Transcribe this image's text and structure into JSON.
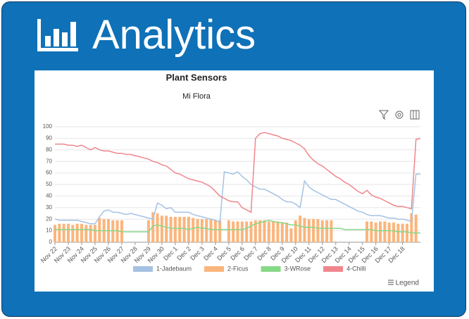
{
  "header": {
    "title": "Analytics"
  },
  "legend_button": "Legend",
  "chart_data": {
    "type": "line",
    "title": "Plant Sensors",
    "subtitle": "Mi Flora",
    "categories": [
      "Nov 22",
      null,
      null,
      "Nov 23",
      null,
      null,
      "Nov 24",
      null,
      null,
      "Nov 25",
      null,
      null,
      "Nov 26",
      null,
      null,
      "Nov 27",
      null,
      null,
      "Nov 28",
      null,
      null,
      "Nov 29",
      null,
      null,
      "Nov 30",
      null,
      null,
      "Dec 1",
      null,
      null,
      "Dec 2",
      null,
      null,
      "Dec 3",
      null,
      null,
      "Dec 4",
      null,
      null,
      "Dec 5",
      null,
      null,
      "Dec 6",
      null,
      null,
      "Dec 7",
      null,
      null,
      "Dec 8",
      null,
      null,
      "Dec 9",
      null,
      null,
      "Dec 10",
      null,
      null,
      "Dec 11",
      null,
      null,
      "Dec 12",
      null,
      null,
      "Dec 13",
      null,
      null,
      "Dec 14",
      null,
      null,
      "Dec 15",
      null,
      null,
      "Dec 16",
      null,
      null,
      "Dec 17",
      null,
      null,
      "Dec 18",
      null,
      null,
      null,
      null
    ],
    "series": [
      {
        "name": "1-Jadebaum",
        "type": "line",
        "color": "#a5c2e3",
        "values": [
          20,
          19,
          19,
          19,
          19,
          19,
          18,
          17,
          16,
          16,
          22,
          27,
          28,
          26,
          26,
          25,
          24,
          25,
          24,
          23,
          22,
          21,
          20,
          34,
          32,
          29,
          30,
          26,
          26,
          26,
          26,
          24,
          23,
          22,
          21,
          20,
          19,
          17,
          61,
          60,
          59,
          61,
          57,
          54,
          50,
          48,
          46,
          46,
          44,
          42,
          40,
          37,
          35,
          35,
          33,
          30,
          53,
          48,
          45,
          43,
          41,
          39,
          37,
          37,
          35,
          33,
          31,
          29,
          27,
          26,
          24,
          23,
          23,
          23,
          22,
          21,
          21,
          20,
          20,
          19,
          18,
          59,
          59
        ]
      },
      {
        "name": "2-Ficus",
        "type": "bar",
        "color": "#fbb57c",
        "values": [
          15,
          16,
          16,
          16,
          15,
          16,
          16,
          15,
          15,
          15,
          21,
          20,
          20,
          19,
          19,
          19,
          null,
          null,
          null,
          null,
          null,
          19,
          26,
          25,
          23,
          23,
          22,
          22,
          22,
          22,
          22,
          21,
          20,
          20,
          20,
          20,
          19,
          19,
          null,
          19,
          18,
          18,
          18,
          18,
          18,
          19,
          19,
          19,
          18,
          18,
          18,
          17,
          17,
          12,
          19,
          23,
          21,
          20,
          20,
          20,
          19,
          19,
          19,
          null,
          null,
          null,
          null,
          null,
          null,
          null,
          18,
          18,
          17,
          18,
          18,
          17,
          17,
          16,
          16,
          16,
          25,
          24,
          null
        ]
      },
      {
        "name": "3-WRose",
        "type": "line",
        "color": "#86d986",
        "values": [
          11,
          11,
          11,
          11,
          11,
          11,
          11,
          11,
          11,
          10,
          10,
          10,
          10,
          10,
          10,
          9,
          9,
          9,
          9,
          9,
          9,
          9,
          14,
          15,
          14,
          13,
          12,
          12,
          12,
          12,
          11,
          12,
          13,
          12,
          12,
          11,
          11,
          11,
          11,
          11,
          11,
          11,
          11,
          12,
          14,
          16,
          17,
          18,
          19,
          18,
          17,
          17,
          16,
          15,
          15,
          14,
          13,
          13,
          13,
          12,
          12,
          12,
          12,
          12,
          12,
          11,
          11,
          11,
          11,
          11,
          11,
          11,
          10,
          10,
          10,
          10,
          10,
          9,
          9,
          9,
          8,
          8,
          8
        ]
      },
      {
        "name": "4-Chilli",
        "type": "line",
        "color": "#f0868c",
        "values": [
          85,
          85,
          85,
          84,
          84,
          83,
          84,
          82,
          80,
          82,
          80,
          79,
          79,
          78,
          77,
          77,
          76,
          76,
          75,
          74,
          73,
          72,
          70,
          69,
          67,
          66,
          63,
          60,
          59,
          57,
          55,
          54,
          53,
          52,
          50,
          48,
          44,
          40,
          38,
          36,
          35,
          35,
          30,
          28,
          26,
          90,
          94,
          95,
          94,
          93,
          92,
          90,
          89,
          88,
          86,
          84,
          81,
          75,
          71,
          68,
          66,
          63,
          60,
          57,
          55,
          52,
          50,
          47,
          44,
          42,
          45,
          41,
          39,
          38,
          36,
          34,
          32,
          31,
          31,
          30,
          29,
          89,
          90
        ]
      }
    ],
    "ylim": [
      0,
      100
    ],
    "yticks": [
      0,
      10,
      20,
      30,
      40,
      50,
      60,
      70,
      80,
      90,
      100
    ],
    "grid": true,
    "legend_position": "bottom"
  }
}
